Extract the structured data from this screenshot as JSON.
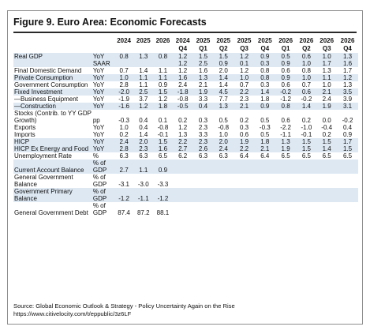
{
  "title": "Figure 9. Euro Area: Economic Forecasts",
  "header": {
    "row1": [
      "2024",
      "2025",
      "2026",
      "2024",
      "2025",
      "2025",
      "2025",
      "2025",
      "2026",
      "2026",
      "2026",
      "2026"
    ],
    "row2": [
      "",
      "",
      "",
      "Q4",
      "Q1",
      "Q2",
      "Q3",
      "Q4",
      "Q1",
      "Q2",
      "Q3",
      "Q4"
    ]
  },
  "rows": [
    {
      "label": "Real GDP",
      "unit": "YoY",
      "values": [
        "0.8",
        "1.3",
        "0.8",
        "1.2",
        "1.5",
        "1.5",
        "1.2",
        "0.9",
        "0.5",
        "0.6",
        "1.0",
        "1.3"
      ],
      "shade": true
    },
    {
      "label": "",
      "unit": "SAAR",
      "values": [
        "",
        "",
        "",
        "1.2",
        "2.5",
        "0.9",
        "0.1",
        "0.3",
        "0.9",
        "1.0",
        "1.7",
        "1.6"
      ],
      "shade": true
    },
    {
      "label": "Final Domestic Demand",
      "unit": "YoY",
      "values": [
        "0.7",
        "1.4",
        "1.1",
        "1.2",
        "1.6",
        "2.0",
        "1.2",
        "0.8",
        "0.6",
        "0.8",
        "1.3",
        "1.7"
      ],
      "shade": false
    },
    {
      "label": "Private Consumption",
      "unit": "YoY",
      "values": [
        "1.0",
        "1.1",
        "1.1",
        "1.6",
        "1.3",
        "1.4",
        "1.0",
        "0.8",
        "0.9",
        "1.0",
        "1.1",
        "1.2"
      ],
      "shade": true
    },
    {
      "label": "Government Consumption",
      "unit": "YoY",
      "values": [
        "2.8",
        "1.1",
        "0.9",
        "2.4",
        "2.1",
        "1.4",
        "0.7",
        "0.3",
        "0.6",
        "0.7",
        "1.0",
        "1.3"
      ],
      "shade": false,
      "wrap": true
    },
    {
      "label": "Fixed Investment",
      "unit": "YoY",
      "values": [
        "-2.0",
        "2.5",
        "1.5",
        "-1.8",
        "1.9",
        "4.5",
        "2.2",
        "1.4",
        "-0.2",
        "0.6",
        "2.1",
        "3.5"
      ],
      "shade": true
    },
    {
      "label": "—Business Equipment",
      "unit": "YoY",
      "values": [
        "-1.9",
        "3.7",
        "1.2",
        "-0.8",
        "3.3",
        "7.7",
        "2.3",
        "1.8",
        "-1.2",
        "-0.2",
        "2.4",
        "3.9"
      ],
      "shade": false
    },
    {
      "label": "—Construction",
      "unit": "YoY",
      "values": [
        "-1.6",
        "1.2",
        "1.8",
        "-0.5",
        "0.4",
        "1.3",
        "2.1",
        "0.9",
        "0.8",
        "1.4",
        "1.9",
        "3.1"
      ],
      "shade": true
    },
    {
      "label": "Stocks (Contrib. to YY GDP Growth)",
      "unit": "pp",
      "values": [
        "-0.3",
        "0.4",
        "0.1",
        "0.2",
        "0.3",
        "0.5",
        "0.2",
        "0.5",
        "0.6",
        "0.2",
        "0.0",
        "-0.2"
      ],
      "shade": false,
      "wrap": true
    },
    {
      "label": "Exports",
      "unit": "YoY",
      "values": [
        "1.0",
        "0.4",
        "-0.8",
        "1.2",
        "2.3",
        "-0.8",
        "0.3",
        "-0.3",
        "-2.2",
        "-1.0",
        "-0.4",
        "0.4"
      ],
      "shade": false
    },
    {
      "label": "Imports",
      "unit": "YoY",
      "values": [
        "0.2",
        "1.4",
        "-0.1",
        "1.3",
        "3.3",
        "1.0",
        "0.6",
        "0.5",
        "-1.1",
        "-0.1",
        "0.2",
        "0.9"
      ],
      "shade": false
    },
    {
      "label": "HICP",
      "unit": "YoY",
      "values": [
        "2.4",
        "2.0",
        "1.5",
        "2.2",
        "2.3",
        "2.0",
        "1.9",
        "1.8",
        "1.3",
        "1.5",
        "1.5",
        "1.7"
      ],
      "shade": true
    },
    {
      "label": "HICP Ex Energy and Food",
      "unit": "YoY",
      "values": [
        "2.8",
        "2.3",
        "1.6",
        "2.7",
        "2.6",
        "2.4",
        "2.2",
        "2.1",
        "1.9",
        "1.5",
        "1.4",
        "1.5"
      ],
      "shade": true
    },
    {
      "label": "Unemployment Rate",
      "unit": "%",
      "values": [
        "6.3",
        "6.3",
        "6.5",
        "6.2",
        "6.3",
        "6.3",
        "6.4",
        "6.4",
        "6.5",
        "6.5",
        "6.5",
        "6.5"
      ],
      "shade": false
    },
    {
      "label": "Current Account Balance",
      "unit": "% of GDP",
      "values": [
        "2.7",
        "1.1",
        "0.9",
        "",
        "",
        "",
        "",
        "",
        "",
        "",
        "",
        ""
      ],
      "shade": true
    },
    {
      "label": "General Government Balance",
      "unit": "% of GDP",
      "values": [
        "-3.1",
        "-3.0",
        "-3.3",
        "",
        "",
        "",
        "",
        "",
        "",
        "",
        "",
        ""
      ],
      "shade": false,
      "wrap": true
    },
    {
      "label": "Government Primary Balance",
      "unit": "% of GDP",
      "values": [
        "-1.2",
        "-1.1",
        "-1.2",
        "",
        "",
        "",
        "",
        "",
        "",
        "",
        "",
        ""
      ],
      "shade": true,
      "wrap": true
    },
    {
      "label": "General Government Debt",
      "unit": "% of GDP",
      "values": [
        "87.4",
        "87.2",
        "88.1",
        "",
        "",
        "",
        "",
        "",
        "",
        "",
        "",
        ""
      ],
      "shade": false,
      "wrap": true
    }
  ],
  "source": {
    "line1": "Source: Global Economic Outlook & Strategy - Policy Uncertainty Again on the Rise",
    "line2": "https://www.citivelocity.com/t/eppublic/3z6LF"
  }
}
